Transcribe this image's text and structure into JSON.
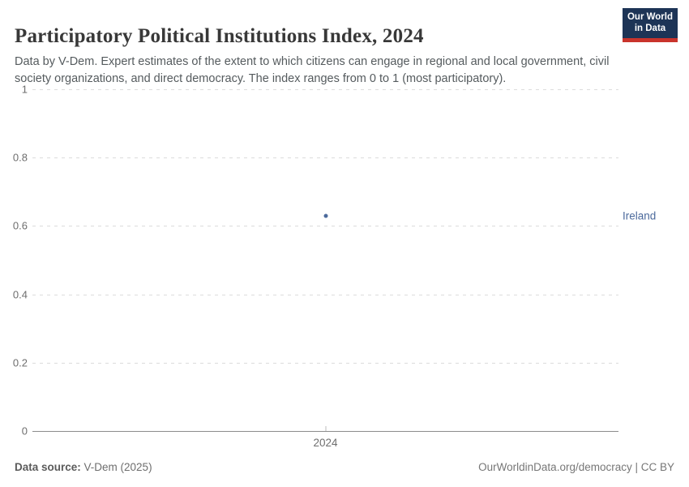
{
  "header": {
    "title": "Participatory Political Institutions Index, 2024",
    "subtitle": "Data by V-Dem. Expert estimates of the extent to which citizens can engage in regional and local government, civil society organizations, and direct democracy. The index ranges from 0 to 1 (most participatory).",
    "logo": {
      "line1": "Our World",
      "line2": "in Data",
      "bg_color": "#1d3456",
      "bar_color": "#c9342c"
    }
  },
  "chart_data": {
    "type": "scatter",
    "title": "Participatory Political Institutions Index, 2024",
    "x": [
      2024
    ],
    "xtick_labels": [
      "2024"
    ],
    "series": [
      {
        "name": "Ireland",
        "values": [
          0.63
        ],
        "color": "#4c6a9c"
      }
    ],
    "ylim": [
      0,
      1
    ],
    "yticks": [
      0,
      0.2,
      0.4,
      0.6,
      0.8,
      1
    ],
    "xlabel": "",
    "ylabel": "",
    "grid": "horizontal-dashed",
    "legend_position": "right-entity-label",
    "colors": {
      "gridline": "#dcdcdc",
      "axis_line": "#8c8c8c",
      "tick_text": "#6e6e6e"
    }
  },
  "footer": {
    "source_label": "Data source:",
    "source_value": " V-Dem (2025)",
    "credit": "OurWorldinData.org/democracy | CC BY"
  }
}
